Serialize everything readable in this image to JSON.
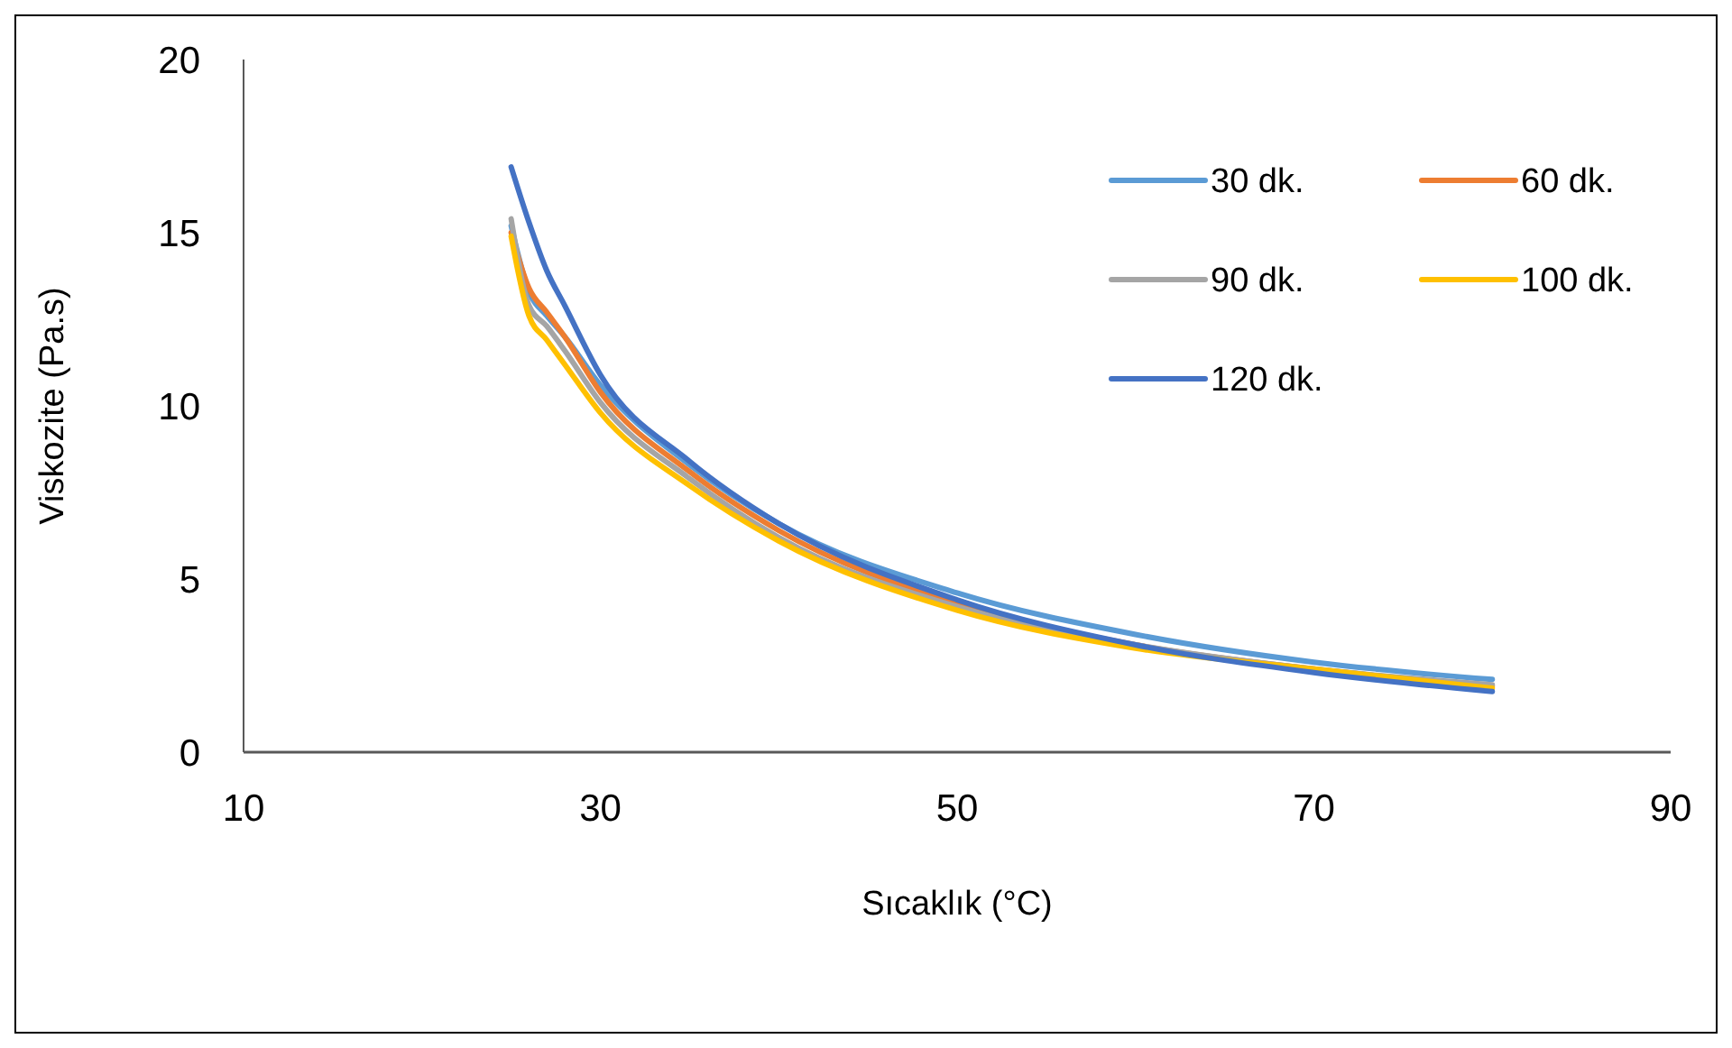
{
  "chart_data": {
    "type": "line",
    "xlabel": "Sıcaklık (°C)",
    "ylabel": "Viskozite (Pa.s)",
    "x": [
      25,
      26,
      27,
      28,
      30,
      35,
      40,
      50,
      60,
      70,
      80
    ],
    "xlim": [
      10,
      90
    ],
    "xticks": [
      10,
      30,
      50,
      70,
      90
    ],
    "ylim": [
      0,
      20
    ],
    "yticks": [
      0,
      5,
      10,
      15,
      20
    ],
    "grid": false,
    "legend": "top right",
    "marker": "none",
    "line_style": "solid",
    "series": [
      {
        "name": "30 dk.",
        "color": "#5b9bd5",
        "values": [
          15.2,
          13.3,
          12.6,
          12.0,
          10.6,
          8.3,
          6.6,
          4.6,
          3.4,
          2.6,
          2.1
        ]
      },
      {
        "name": "60 dk.",
        "color": "#ed7d31",
        "values": [
          15.0,
          13.4,
          12.7,
          12.0,
          10.4,
          8.1,
          6.4,
          4.3,
          3.1,
          2.4,
          1.9
        ]
      },
      {
        "name": "90 dk.",
        "color": "#a5a5a5",
        "values": [
          15.4,
          12.9,
          12.3,
          11.6,
          10.1,
          7.9,
          6.2,
          4.2,
          3.1,
          2.4,
          1.95
        ]
      },
      {
        "name": "100 dk.",
        "color": "#ffc000",
        "values": [
          14.9,
          12.6,
          11.9,
          11.2,
          9.8,
          7.7,
          6.1,
          4.1,
          3.0,
          2.4,
          1.85
        ]
      },
      {
        "name": "120 dk.",
        "color": "#4472c4",
        "values": [
          16.9,
          15.3,
          13.9,
          12.9,
          10.9,
          8.4,
          6.6,
          4.4,
          3.1,
          2.3,
          1.75
        ]
      }
    ]
  }
}
